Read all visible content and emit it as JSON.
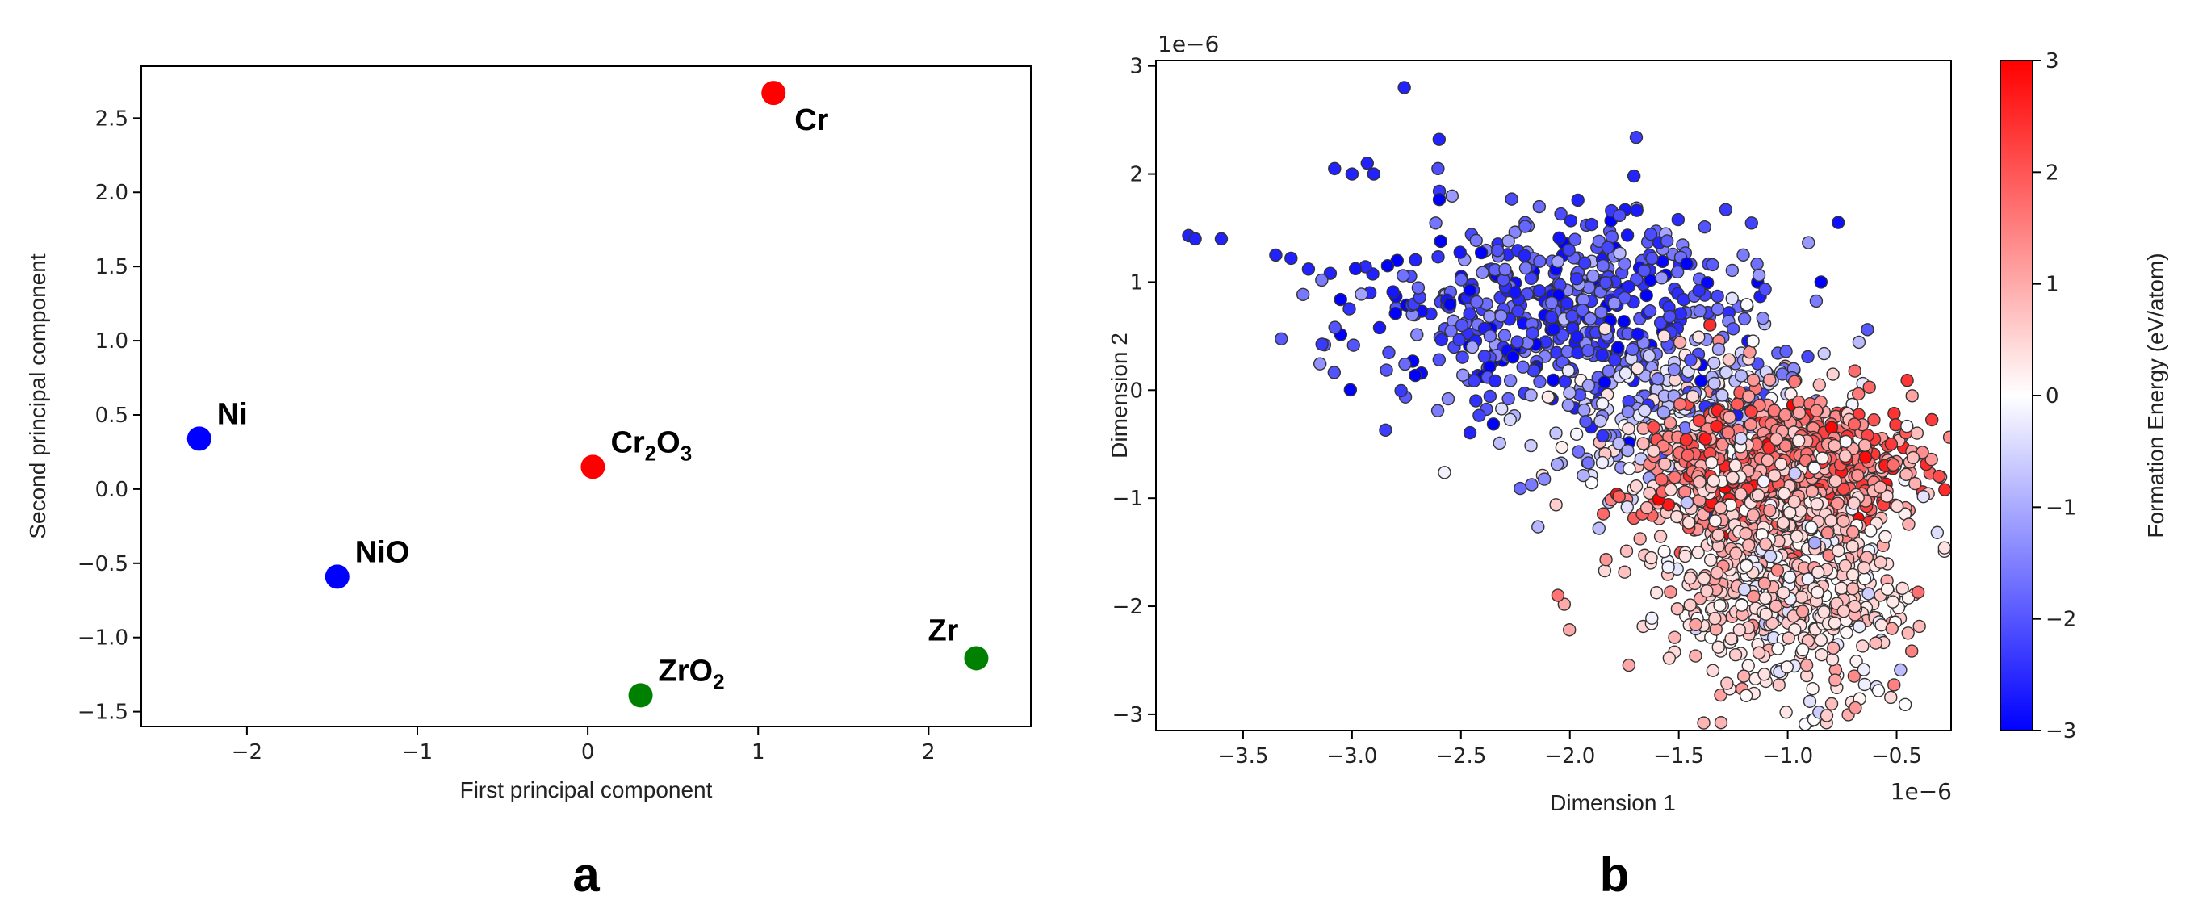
{
  "chart_data": [
    {
      "type": "scatter",
      "panel_label": "a",
      "xlabel": "First principal component",
      "ylabel": "Second principal component",
      "xlim": [
        -2.62,
        2.6
      ],
      "ylim": [
        -1.6,
        2.85
      ],
      "x_ticks": [
        -2,
        -1,
        0,
        1,
        2
      ],
      "y_ticks": [
        -1.5,
        -1.0,
        -0.5,
        0.0,
        0.5,
        1.0,
        1.5,
        2.0,
        2.5
      ],
      "grid": false,
      "colors": {
        "red": "#ff0000",
        "blue": "#0000ff",
        "green": "#008000"
      },
      "points": [
        {
          "label": "Ni",
          "sub": "",
          "label_tail": "",
          "x": -2.28,
          "y": 0.34,
          "color": "#0000ff",
          "label_pos": "upper-right"
        },
        {
          "label": "NiO",
          "sub": "",
          "label_tail": "",
          "x": -1.47,
          "y": -0.59,
          "color": "#0000ff",
          "label_pos": "upper-right"
        },
        {
          "label": "Cr",
          "sub": "2",
          "label_tail": "O",
          "label_sub2": "3",
          "x": 0.03,
          "y": 0.15,
          "color": "#ff0000",
          "label_pos": "upper-right"
        },
        {
          "label": "Cr",
          "sub": "",
          "label_tail": "",
          "x": 1.09,
          "y": 2.67,
          "color": "#ff0000",
          "label_pos": "lower-right"
        },
        {
          "label": "ZrO",
          "sub": "2",
          "label_tail": "",
          "x": 0.31,
          "y": -1.39,
          "color": "#008000",
          "label_pos": "upper-right"
        },
        {
          "label": "Zr",
          "sub": "",
          "label_tail": "",
          "x": 2.28,
          "y": -1.14,
          "color": "#008000",
          "label_pos": "upper-left"
        }
      ]
    },
    {
      "type": "scatter",
      "panel_label": "b",
      "xlabel": "Dimension 1",
      "ylabel": "Dimension 2",
      "x_offset_text": "1e−6",
      "y_offset_text": "1e−6",
      "xlim": [
        -3.9,
        -0.25
      ],
      "ylim": [
        -3.15,
        3.05
      ],
      "x_ticks": [
        -3.5,
        -3.0,
        -2.5,
        -2.0,
        -1.5,
        -1.0,
        -0.5
      ],
      "x_tick_labels": [
        "−3.5",
        "−3.0",
        "−2.5",
        "−2.0",
        "−1.5",
        "−1.0",
        "−0.5"
      ],
      "y_ticks": [
        -3,
        -2,
        -1,
        0,
        1,
        2,
        3
      ],
      "y_tick_labels": [
        "−3",
        "−2",
        "−1",
        "0",
        "1",
        "2",
        "3"
      ],
      "grid": false,
      "colorbar": {
        "label": "Formation Energy (eV/atom)",
        "cmap": "bwr",
        "vmin": -3,
        "vmax": 3,
        "ticks": [
          -3,
          -2,
          -1,
          0,
          1,
          2,
          3
        ],
        "tick_labels": [
          "−3",
          "−2",
          "−1",
          "0",
          "1",
          "2",
          "3"
        ]
      },
      "clusters": [
        {
          "name": "outliers-left",
          "points": [
            [
              -3.75,
              1.43
            ],
            [
              -3.72,
              1.4
            ],
            [
              -3.6,
              1.4
            ],
            [
              -3.35,
              1.25
            ],
            [
              -3.28,
              1.22
            ],
            [
              -3.2,
              1.12
            ],
            [
              -3.1,
              1.08
            ],
            [
              -2.76,
              2.8
            ],
            [
              -2.6,
              2.32
            ],
            [
              -3.08,
              2.05
            ],
            [
              -3.0,
              2.0
            ],
            [
              -2.93,
              2.1
            ],
            [
              -2.9,
              2.0
            ]
          ]
        },
        {
          "name": "blue-band",
          "n": 520,
          "cx": -2.05,
          "cy": 0.75,
          "sx": 0.42,
          "sy": 0.5,
          "rot": -0.62,
          "vmean": -2.2,
          "vsd": 0.55
        },
        {
          "name": "mixed-transition",
          "n": 300,
          "cx": -1.5,
          "cy": -0.2,
          "sx": 0.28,
          "sy": 0.45,
          "rot": -0.6,
          "vmean": -0.6,
          "vsd": 0.9
        },
        {
          "name": "red-core",
          "n": 900,
          "cx": -1.0,
          "cy": -0.75,
          "sx": 0.28,
          "sy": 0.32,
          "rot": -0.2,
          "vmean": 1.6,
          "vsd": 0.6
        },
        {
          "name": "pink-tail",
          "n": 650,
          "cx": -1.0,
          "cy": -1.75,
          "sx": 0.3,
          "sy": 0.5,
          "rot": 0.0,
          "vmean": 0.45,
          "vsd": 0.45
        }
      ]
    }
  ]
}
